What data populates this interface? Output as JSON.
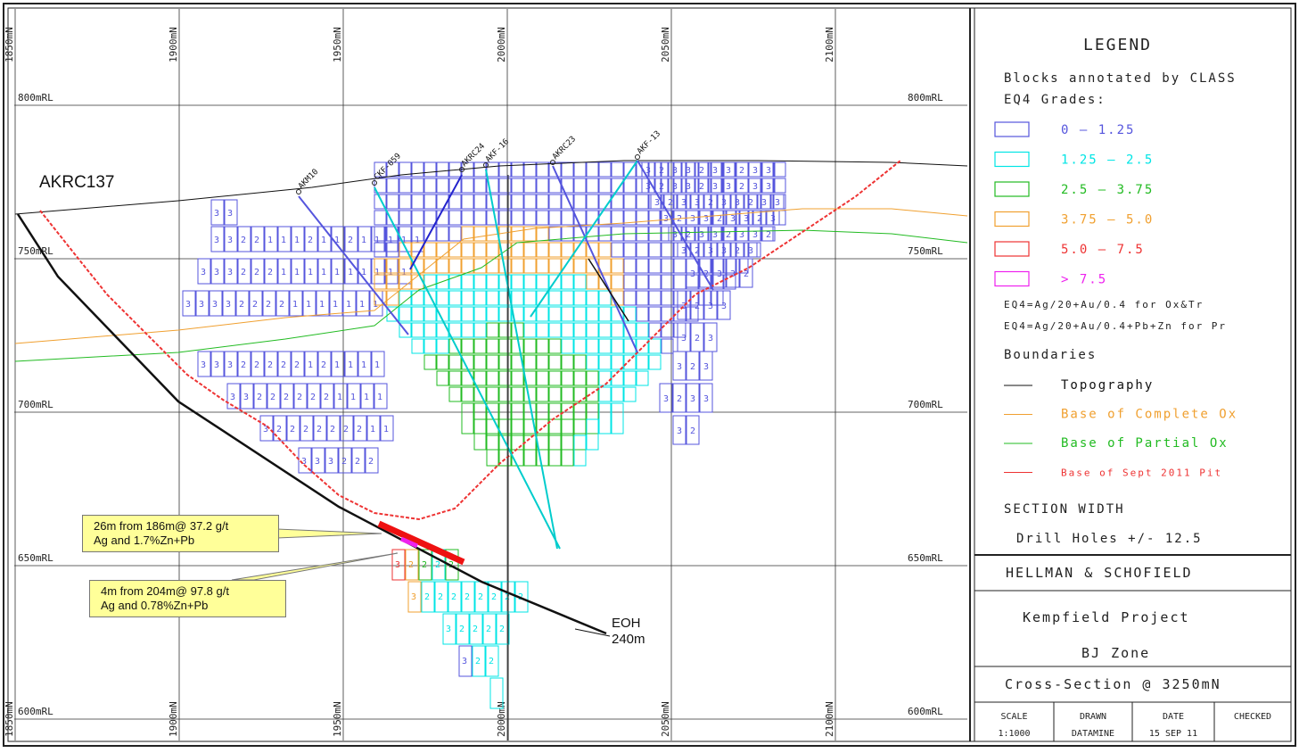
{
  "section": {
    "hole_id": "AKRC137",
    "eoh_label": "EOH",
    "eoh_depth": "240m",
    "rl_labels": [
      "800mRL",
      "750mRL",
      "700mRL",
      "650mRL",
      "600mRL"
    ],
    "rl_values": [
      800,
      750,
      700,
      650,
      600
    ],
    "n_labels": [
      "1850mN",
      "1900mN",
      "1950mN",
      "2000mN",
      "2050mN",
      "2100mN"
    ],
    "n_values": [
      1850,
      1900,
      1950,
      2000,
      2050,
      2100
    ],
    "drill_holes": [
      "AKM10",
      "CKF-059",
      "AKRC24",
      "AKF-16",
      "AKRC23",
      "AKF-13"
    ],
    "callouts": [
      {
        "line1": "26m from 186m@ 37.2 g/t",
        "line2": "Ag and 1.7%Zn+Pb"
      },
      {
        "line1": "4m from 204m@ 97.8 g/t",
        "line2": "Ag and 0.78%Zn+Pb"
      }
    ],
    "block_grid": [
      {
        "rl": 772,
        "e0": 1853,
        "e1": 1870,
        "cls": [
          "3",
          "3"
        ]
      },
      {
        "rl": 770,
        "e0": 1878,
        "e1": 1898,
        "cls": [
          "3",
          "2",
          "2",
          "1",
          "1",
          "2",
          "2",
          "2",
          "2"
        ]
      },
      {
        "rl": 763,
        "e0": 1858,
        "e1": 1870,
        "cls": [
          "3",
          "3",
          "2",
          "2",
          "1",
          "1",
          "2",
          "1",
          "1",
          "2",
          "3",
          "2",
          "2",
          "1",
          "1",
          "1",
          "2"
        ]
      },
      {
        "rl": 748,
        "e0": 1840,
        "e1": 1905,
        "cls": [
          "3",
          "3",
          "3",
          "3",
          "2",
          "2",
          "1",
          "1",
          "2",
          "1"
        ]
      },
      {
        "rl": 740,
        "e0": 1837,
        "e1": 1905,
        "cls": [
          "3",
          "3",
          "3",
          "3",
          "2",
          "2",
          "2",
          "2",
          "1",
          "1",
          "1"
        ]
      },
      {
        "rl": 732,
        "e0": 1833,
        "e1": 1905,
        "cls": [
          "3",
          "3",
          "3",
          "2",
          "2",
          "2",
          "2",
          "1",
          "1",
          "1",
          "1"
        ]
      },
      {
        "rl": 724,
        "e0": 1838,
        "e1": 1905,
        "cls": [
          "3",
          "3",
          "3",
          "2",
          "2",
          "2",
          "2",
          "1",
          "1",
          "1"
        ]
      },
      {
        "rl": 716,
        "e0": 1838,
        "e1": 1905,
        "cls": [
          "3",
          "3",
          "3",
          "2",
          "2",
          "2",
          "2",
          "1",
          "2",
          "2"
        ]
      },
      {
        "rl": 708,
        "e0": 1850,
        "e1": 1905,
        "cls": [
          "3",
          "3",
          "2",
          "2",
          "2",
          "2",
          "2",
          "2"
        ]
      },
      {
        "rl": 700,
        "e0": 1862,
        "e1": 1905,
        "cls": [
          "3",
          "2",
          "2",
          "2",
          "2",
          "2"
        ]
      },
      {
        "rl": 692,
        "e0": 1872,
        "e1": 1905,
        "cls": [
          "3",
          "2",
          "2",
          "2",
          "2"
        ]
      }
    ]
  },
  "legend": {
    "title": "LEGEND",
    "subtitle_1": "Blocks annotated by CLASS",
    "subtitle_2": "EQ4 Grades:",
    "grades": [
      {
        "label": "0  –  1.25",
        "color": "#5555dd"
      },
      {
        "label": "1.25  –  2.5",
        "color": "#00e5e5"
      },
      {
        "label": "2.5  –  3.75",
        "color": "#22bb22"
      },
      {
        "label": "3.75  –  5.0",
        "color": "#f0a030"
      },
      {
        "label": "5.0  –  7.5",
        "color": "#ee3333"
      },
      {
        "label": "> 7.5",
        "color": "#ee22ee"
      }
    ],
    "formula_1": "EQ4=Ag/20+Au/0.4 for Ox&Tr",
    "formula_2": "EQ4=Ag/20+Au/0.4+Pb+Zn for Pr",
    "boundaries_title": "Boundaries",
    "boundaries": [
      {
        "label": "Topography",
        "color": "#111111"
      },
      {
        "label": "Base of Complete Ox",
        "color": "#f0a030"
      },
      {
        "label": "Base of Partial Ox",
        "color": "#22bb22"
      },
      {
        "label": "Base of Sept 2011 Pit",
        "color": "#ee3333"
      }
    ],
    "section_width_title": "SECTION WIDTH",
    "section_width_value": "Drill Holes +/- 12.5"
  },
  "title_block": {
    "company": "HELLMAN & SCHOFIELD",
    "project": "Kempfield Project",
    "zone": "BJ Zone",
    "section": "Cross-Section @ 3250mN",
    "fields": [
      {
        "label": "SCALE",
        "value": "1:1000"
      },
      {
        "label": "DRAWN",
        "value": "DATAMINE"
      },
      {
        "label": "DATE",
        "value": "15 SEP 11"
      },
      {
        "label": "CHECKED",
        "value": ""
      }
    ]
  }
}
